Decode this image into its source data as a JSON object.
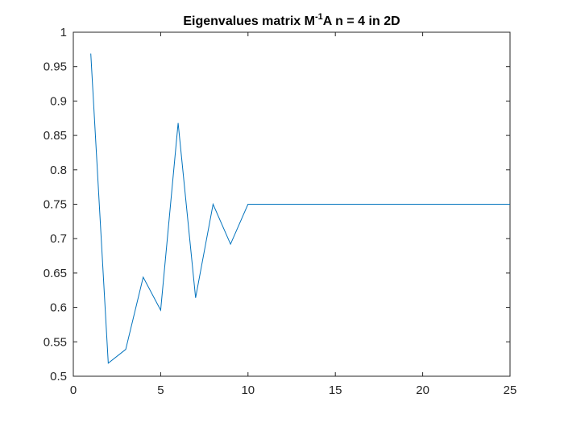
{
  "chart_data": {
    "type": "line",
    "title": {
      "prefix": "Eigenvalues matrix M",
      "superscript": "-1",
      "suffix": "A n = 4 in 2D"
    },
    "xlabel": "",
    "ylabel": "",
    "xlim": [
      0,
      25
    ],
    "ylim": [
      0.5,
      1
    ],
    "xticks": [
      0,
      5,
      10,
      15,
      20,
      25
    ],
    "yticks": [
      0.5,
      0.55,
      0.6,
      0.65,
      0.7,
      0.75,
      0.8,
      0.85,
      0.9,
      0.95,
      1
    ],
    "xtick_labels": [
      "0",
      "5",
      "10",
      "15",
      "20",
      "25"
    ],
    "ytick_labels": [
      "0.5",
      "0.55",
      "0.6",
      "0.65",
      "0.7",
      "0.75",
      "0.8",
      "0.85",
      "0.9",
      "0.95",
      "1"
    ],
    "grid": false,
    "series": [
      {
        "color": "#0072BD",
        "x": [
          1,
          2,
          3,
          4,
          5,
          6,
          7,
          8,
          9,
          10,
          11,
          12,
          13,
          14,
          15,
          16,
          17,
          18,
          19,
          20,
          21,
          22,
          23,
          24,
          25
        ],
        "y": [
          0.969,
          0.519,
          0.539,
          0.644,
          0.596,
          0.868,
          0.614,
          0.75,
          0.692,
          0.75,
          0.75,
          0.75,
          0.75,
          0.75,
          0.75,
          0.75,
          0.75,
          0.75,
          0.75,
          0.75,
          0.75,
          0.75,
          0.75,
          0.75,
          0.75
        ]
      }
    ]
  }
}
